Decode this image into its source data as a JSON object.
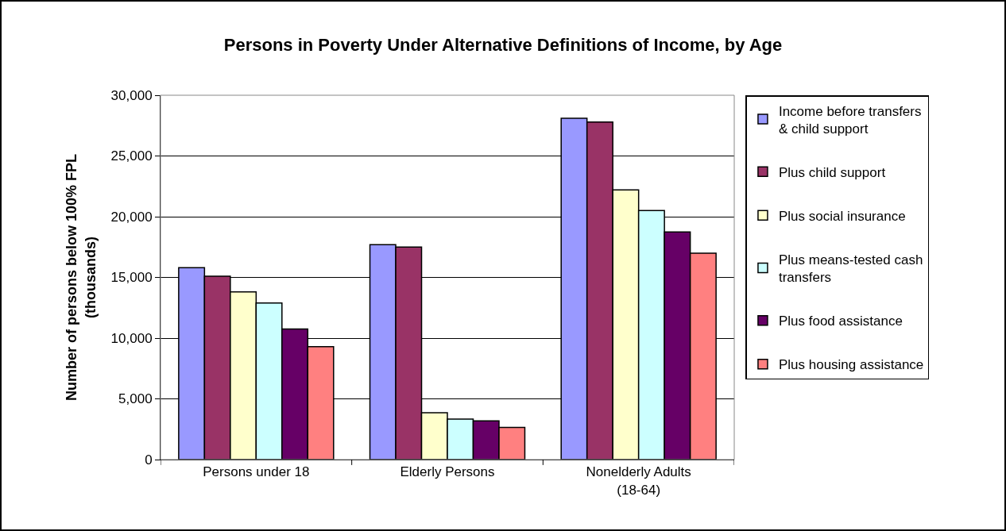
{
  "chart_data": {
    "type": "bar",
    "title": "Persons in Poverty Under Alternative Definitions of Income, by Age",
    "ylabel": "Number of persons below 100% FPL (thousands)",
    "categories": [
      "Persons under 18",
      "Elderly Persons",
      "Nonelderly Adults (18-64)"
    ],
    "series": [
      {
        "name": "Income before transfers & child support",
        "color": "#9999ff",
        "values": [
          15800,
          17700,
          28100
        ]
      },
      {
        "name": "Plus child support",
        "color": "#993366",
        "values": [
          15100,
          17500,
          27800
        ]
      },
      {
        "name": "Plus social insurance",
        "color": "#ffffcc",
        "values": [
          13800,
          3850,
          22200
        ]
      },
      {
        "name": "Plus means-tested cash transfers",
        "color": "#ccffff",
        "values": [
          12900,
          3330,
          20500
        ]
      },
      {
        "name": "Plus food assistance",
        "color": "#660066",
        "values": [
          10750,
          3180,
          18750
        ]
      },
      {
        "name": "Plus housing assistance",
        "color": "#ff8080",
        "values": [
          9300,
          2650,
          17000
        ]
      }
    ],
    "ylim": [
      0,
      30000
    ],
    "yticks": [
      {
        "value": 0,
        "label": "0"
      },
      {
        "value": 5000,
        "label": "5,000"
      },
      {
        "value": 10000,
        "label": "10,000"
      },
      {
        "value": 15000,
        "label": "15,000"
      },
      {
        "value": 20000,
        "label": "20,000"
      },
      {
        "value": 25000,
        "label": "25,000"
      },
      {
        "value": 30000,
        "label": "30,000"
      }
    ],
    "grid": "y",
    "legend": "right"
  }
}
